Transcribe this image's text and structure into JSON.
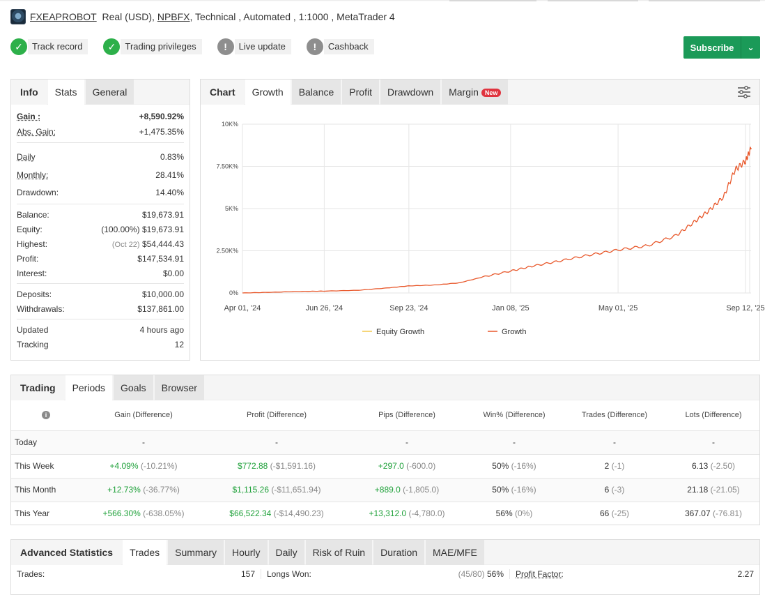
{
  "header": {
    "name": "FXEAPROBOT",
    "account_type": "Real (USD),",
    "broker": "NPBFX",
    "details": ", Technical , Automated , 1:1000 , MetaTrader 4"
  },
  "badges": [
    {
      "label": "Track record",
      "status": "ok"
    },
    {
      "label": "Trading privileges",
      "status": "ok"
    },
    {
      "label": "Live update",
      "status": "warn"
    },
    {
      "label": "Cashback",
      "status": "warn"
    }
  ],
  "subscribe": {
    "label": "Subscribe"
  },
  "info_panel": {
    "tabs": [
      "Info",
      "Stats",
      "General"
    ],
    "gain_label": "Gain :",
    "gain_value": "+8,590.92%",
    "abs_gain_label": "Abs. Gain:",
    "abs_gain_value": "+1,475.35%",
    "daily_label": "Daily",
    "daily_value": "0.83%",
    "monthly_label": "Monthly:",
    "monthly_value": "28.41%",
    "drawdown_label": "Drawdown:",
    "drawdown_value": "14.40%",
    "balance_label": "Balance:",
    "balance_value": "$19,673.91",
    "equity_label": "Equity:",
    "equity_pct": "(100.00%)",
    "equity_value": "$19,673.91",
    "highest_label": "Highest:",
    "highest_date": "(Oct 22)",
    "highest_value": "$54,444.43",
    "profit_label": "Profit:",
    "profit_value": "$147,534.91",
    "interest_label": "Interest:",
    "interest_value": "$0.00",
    "deposits_label": "Deposits:",
    "deposits_value": "$10,000.00",
    "withdrawals_label": "Withdrawals:",
    "withdrawals_value": "$137,861.00",
    "updated_label": "Updated",
    "updated_value": "4 hours ago",
    "tracking_label": "Tracking",
    "tracking_value": "12"
  },
  "chart_panel": {
    "tabs": [
      "Chart",
      "Growth",
      "Balance",
      "Profit",
      "Drawdown",
      "Margin"
    ],
    "new_badge": "New"
  },
  "chart_data": {
    "type": "line",
    "y_ticks": [
      "0%",
      "2.50K%",
      "5K%",
      "7.50K%",
      "10K%"
    ],
    "ylim": [
      0,
      10000
    ],
    "x_ticks": [
      "Apr 01, '24",
      "Jun 26, '24",
      "Sep 23, '24",
      "Jan 08, '25",
      "May 01, '25",
      "Sep 12, '25"
    ],
    "grid": true,
    "legend_position": "bottom",
    "series": [
      {
        "name": "Equity Growth",
        "color": "#f2c94c",
        "x": [],
        "y": []
      },
      {
        "name": "Growth",
        "color": "#e8572a",
        "x": [
          "2024-04-01",
          "2024-05-01",
          "2024-06-01",
          "2024-06-26",
          "2024-08-01",
          "2024-09-01",
          "2024-09-23",
          "2024-10-20",
          "2024-11-15",
          "2024-12-10",
          "2025-01-08",
          "2025-02-01",
          "2025-03-01",
          "2025-04-01",
          "2025-05-01",
          "2025-06-01",
          "2025-07-01",
          "2025-07-20",
          "2025-08-05",
          "2025-08-20",
          "2025-09-01",
          "2025-09-12",
          "2025-09-18"
        ],
        "y": [
          0,
          40,
          90,
          110,
          160,
          300,
          420,
          470,
          600,
          950,
          1300,
          1600,
          1900,
          2250,
          2550,
          2800,
          3400,
          4200,
          4900,
          5700,
          7300,
          7800,
          8590
        ]
      }
    ]
  },
  "trading_panel": {
    "tabs": [
      "Trading",
      "Periods",
      "Goals",
      "Browser"
    ],
    "columns": [
      "Gain (Difference)",
      "Profit (Difference)",
      "Pips (Difference)",
      "Win% (Difference)",
      "Trades (Difference)",
      "Lots (Difference)"
    ],
    "rows": [
      {
        "period": "Today",
        "gain": "-",
        "gain_diff": "",
        "profit": "-",
        "profit_diff": "",
        "pips": "-",
        "pips_diff": "",
        "win": "-",
        "win_diff": "",
        "trades": "-",
        "trades_diff": "",
        "lots": "-",
        "lots_diff": ""
      },
      {
        "period": "This Week",
        "gain": "+4.09%",
        "gain_diff": "(-10.21%)",
        "profit": "$772.88",
        "profit_diff": "(-$1,591.16)",
        "pips": "+297.0",
        "pips_diff": "(-600.0)",
        "win": "50%",
        "win_diff": "(-16%)",
        "trades": "2",
        "trades_diff": "(-1)",
        "lots": "6.13",
        "lots_diff": "(-2.50)"
      },
      {
        "period": "This Month",
        "gain": "+12.73%",
        "gain_diff": "(-36.77%)",
        "profit": "$1,115.26",
        "profit_diff": "(-$11,651.94)",
        "pips": "+889.0",
        "pips_diff": "(-1,805.0)",
        "win": "50%",
        "win_diff": "(-16%)",
        "trades": "6",
        "trades_diff": "(-3)",
        "lots": "21.18",
        "lots_diff": "(-21.05)"
      },
      {
        "period": "This Year",
        "gain": "+566.30%",
        "gain_diff": "(-638.05%)",
        "profit": "$66,522.34",
        "profit_diff": "(-$14,490.23)",
        "pips": "+13,312.0",
        "pips_diff": "(-4,780.0)",
        "win": "56%",
        "win_diff": "(0%)",
        "trades": "66",
        "trades_diff": "(-25)",
        "lots": "367.07",
        "lots_diff": "(-76.81)"
      }
    ]
  },
  "advanced_panel": {
    "tabs": [
      "Advanced Statistics",
      "Trades",
      "Summary",
      "Hourly",
      "Daily",
      "Risk of Ruin",
      "Duration",
      "MAE/MFE"
    ],
    "trades_label": "Trades:",
    "trades_value": "157",
    "longs_label": "Longs Won:",
    "longs_detail": "(45/80)",
    "longs_value": "56%",
    "pf_label": "Profit Factor:",
    "pf_value": "2.27"
  }
}
